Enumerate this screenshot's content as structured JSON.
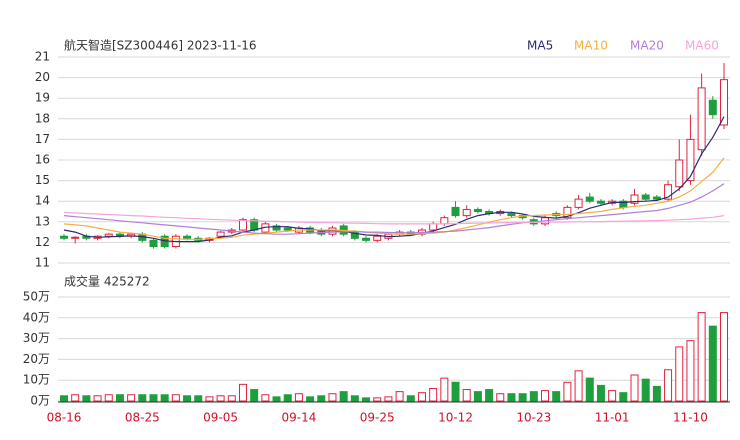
{
  "chart_data": [
    {
      "type": "candlestick",
      "title": "航天智造[SZ300446] 2023-11-16",
      "categories": [
        "08-16",
        null,
        null,
        null,
        null,
        null,
        null,
        "08-25",
        null,
        null,
        null,
        null,
        null,
        null,
        "09-05",
        null,
        null,
        null,
        null,
        null,
        null,
        "09-14",
        null,
        null,
        null,
        null,
        null,
        null,
        "09-25",
        null,
        null,
        null,
        null,
        null,
        null,
        "10-12",
        null,
        null,
        null,
        null,
        null,
        null,
        "10-23",
        null,
        null,
        null,
        null,
        null,
        null,
        "11-01",
        null,
        null,
        null,
        null,
        null,
        null,
        "11-10",
        null,
        null,
        null
      ],
      "open": [
        12.3,
        12.2,
        12.3,
        12.2,
        12.3,
        12.4,
        12.3,
        12.4,
        12.1,
        12.3,
        11.8,
        12.3,
        12.2,
        12.1,
        12.3,
        12.5,
        12.6,
        13.1,
        12.5,
        12.8,
        12.7,
        12.5,
        12.7,
        12.6,
        12.4,
        12.8,
        12.5,
        12.2,
        12.1,
        12.2,
        12.4,
        12.5,
        12.4,
        12.6,
        12.9,
        13.7,
        13.3,
        13.6,
        13.5,
        13.4,
        13.4,
        13.3,
        13.1,
        12.9,
        13.4,
        13.2,
        13.7,
        14.2,
        14.0,
        13.9,
        14.0,
        13.9,
        14.3,
        14.2,
        14.1,
        14.7,
        15.0,
        16.5,
        18.9,
        17.7
      ],
      "high": [
        12.4,
        12.3,
        12.4,
        12.35,
        12.45,
        12.5,
        12.45,
        12.5,
        12.2,
        12.4,
        12.4,
        12.4,
        12.3,
        12.25,
        12.55,
        12.7,
        13.2,
        13.2,
        13.0,
        12.9,
        12.8,
        12.8,
        12.8,
        12.7,
        12.8,
        12.9,
        12.6,
        12.3,
        12.4,
        12.5,
        12.6,
        12.6,
        12.7,
        13.0,
        13.3,
        14.0,
        13.8,
        13.7,
        13.6,
        13.6,
        13.5,
        13.4,
        13.2,
        13.3,
        13.5,
        13.8,
        14.3,
        14.4,
        14.1,
        14.1,
        14.1,
        14.6,
        14.4,
        14.3,
        15.0,
        17.0,
        18.2,
        20.2,
        19.1,
        20.7
      ],
      "low": [
        12.1,
        11.95,
        12.1,
        12.1,
        12.2,
        12.2,
        12.2,
        12.0,
        11.7,
        11.7,
        11.7,
        12.1,
        12.0,
        12.0,
        12.2,
        12.4,
        12.5,
        12.5,
        12.4,
        12.5,
        12.5,
        12.4,
        12.4,
        12.3,
        12.3,
        12.3,
        12.1,
        12.0,
        12.0,
        12.1,
        12.3,
        12.3,
        12.3,
        12.5,
        12.8,
        13.2,
        13.2,
        13.4,
        13.3,
        13.3,
        13.2,
        13.1,
        12.8,
        12.8,
        13.2,
        13.1,
        13.6,
        13.9,
        13.8,
        13.8,
        13.6,
        13.8,
        14.0,
        14.0,
        14.0,
        14.5,
        14.8,
        16.2,
        18.0,
        17.5
      ],
      "close": [
        12.2,
        12.25,
        12.2,
        12.3,
        12.4,
        12.3,
        12.4,
        12.1,
        11.8,
        11.8,
        12.3,
        12.2,
        12.1,
        12.2,
        12.5,
        12.6,
        13.1,
        12.6,
        12.9,
        12.6,
        12.6,
        12.7,
        12.5,
        12.4,
        12.7,
        12.4,
        12.2,
        12.1,
        12.3,
        12.4,
        12.5,
        12.4,
        12.6,
        12.9,
        13.2,
        13.3,
        13.6,
        13.5,
        13.4,
        13.5,
        13.3,
        13.2,
        12.9,
        13.2,
        13.3,
        13.7,
        14.1,
        14.0,
        13.9,
        14.0,
        13.7,
        14.3,
        14.1,
        14.1,
        14.8,
        16.0,
        17.0,
        19.5,
        18.2,
        19.9
      ],
      "up_color": "#e0233f",
      "down_color": "#1e9e3c",
      "series": [
        {
          "name": "MA5",
          "color": "#2c2c6e",
          "values": [
            12.6,
            12.5,
            12.3,
            12.25,
            12.27,
            12.29,
            12.32,
            12.28,
            12.2,
            12.08,
            12.04,
            12.04,
            12.04,
            12.12,
            12.26,
            12.32,
            12.5,
            12.6,
            12.74,
            12.76,
            12.76,
            12.68,
            12.66,
            12.56,
            12.58,
            12.54,
            12.44,
            12.36,
            12.34,
            12.28,
            12.3,
            12.34,
            12.44,
            12.56,
            12.72,
            12.88,
            13.12,
            13.3,
            13.4,
            13.46,
            13.46,
            13.38,
            13.26,
            13.22,
            13.18,
            13.26,
            13.44,
            13.66,
            13.8,
            13.94,
            13.94,
            13.98,
            14.0,
            14.04,
            14.2,
            14.6,
            15.2,
            16.3,
            17.1,
            18.1
          ]
        },
        {
          "name": "MA10",
          "color": "#f5b041",
          "values": [
            12.9,
            12.85,
            12.8,
            12.7,
            12.6,
            12.5,
            12.45,
            12.4,
            12.3,
            12.2,
            12.17,
            12.15,
            12.15,
            12.18,
            12.2,
            12.25,
            12.35,
            12.4,
            12.45,
            12.5,
            12.55,
            12.6,
            12.6,
            12.6,
            12.6,
            12.58,
            12.55,
            12.5,
            12.45,
            12.42,
            12.4,
            12.4,
            12.42,
            12.45,
            12.5,
            12.6,
            12.72,
            12.85,
            12.98,
            13.1,
            13.2,
            13.28,
            13.3,
            13.33,
            13.35,
            13.36,
            13.4,
            13.45,
            13.5,
            13.6,
            13.68,
            13.75,
            13.8,
            13.9,
            14.0,
            14.2,
            14.5,
            14.95,
            15.4,
            16.1
          ]
        },
        {
          "name": "MA20",
          "color": "#b07fdc",
          "values": [
            13.3,
            13.25,
            13.2,
            13.15,
            13.1,
            13.05,
            13.0,
            12.95,
            12.9,
            12.85,
            12.8,
            12.75,
            12.7,
            12.65,
            12.6,
            12.55,
            12.5,
            12.45,
            12.42,
            12.4,
            12.4,
            12.42,
            12.45,
            12.48,
            12.5,
            12.52,
            12.52,
            12.5,
            12.5,
            12.48,
            12.47,
            12.47,
            12.48,
            12.5,
            12.52,
            12.55,
            12.6,
            12.66,
            12.72,
            12.8,
            12.88,
            12.95,
            13.0,
            13.05,
            13.1,
            13.15,
            13.2,
            13.25,
            13.3,
            13.35,
            13.4,
            13.45,
            13.5,
            13.55,
            13.65,
            13.8,
            13.95,
            14.2,
            14.5,
            14.85
          ]
        },
        {
          "name": "MA60",
          "color": "#f2a6d8",
          "values": [
            13.45,
            13.43,
            13.4,
            13.38,
            13.35,
            13.33,
            13.3,
            13.28,
            13.25,
            13.22,
            13.2,
            13.17,
            13.15,
            13.12,
            13.1,
            13.08,
            13.06,
            13.05,
            13.03,
            13.02,
            13.0,
            12.98,
            12.97,
            12.96,
            12.95,
            12.94,
            12.93,
            12.92,
            12.91,
            12.9,
            12.9,
            12.9,
            12.9,
            12.9,
            12.9,
            12.91,
            12.92,
            12.93,
            12.94,
            12.95,
            12.96,
            12.97,
            12.97,
            12.98,
            12.98,
            12.99,
            13.0,
            13.0,
            13.01,
            13.02,
            13.03,
            13.04,
            13.05,
            13.06,
            13.08,
            13.1,
            13.13,
            13.18,
            13.22,
            13.3
          ]
        }
      ],
      "ylim": [
        11,
        21
      ],
      "yticks": [
        11,
        12,
        13,
        14,
        15,
        16,
        17,
        18,
        19,
        20,
        21
      ],
      "grid": true
    },
    {
      "type": "bar",
      "title": "成交量 425272",
      "values": [
        2.5,
        3,
        2.5,
        2.5,
        3,
        3,
        3,
        3,
        3,
        3,
        3,
        2.5,
        2.5,
        2,
        2.5,
        2.5,
        8,
        5.5,
        3,
        2,
        3,
        3.5,
        2,
        2.5,
        3.5,
        4.5,
        2.5,
        1.5,
        1.5,
        2,
        4.5,
        2.5,
        4,
        6,
        11,
        9,
        5.5,
        4.5,
        5.5,
        3.5,
        3.5,
        3.5,
        4.5,
        5,
        4.5,
        9,
        14.5,
        11,
        7.5,
        5,
        4,
        12.5,
        10.5,
        7,
        15,
        26,
        29,
        42.5,
        36,
        42.5
      ],
      "ylim": [
        0,
        50
      ],
      "yticks": [
        {
          "value": 0,
          "label": "0万"
        },
        {
          "value": 10,
          "label": "10万"
        },
        {
          "value": 20,
          "label": "20万"
        },
        {
          "value": 30,
          "label": "30万"
        },
        {
          "value": 40,
          "label": "40万"
        },
        {
          "value": 50,
          "label": "50万"
        }
      ],
      "grid": true
    }
  ]
}
